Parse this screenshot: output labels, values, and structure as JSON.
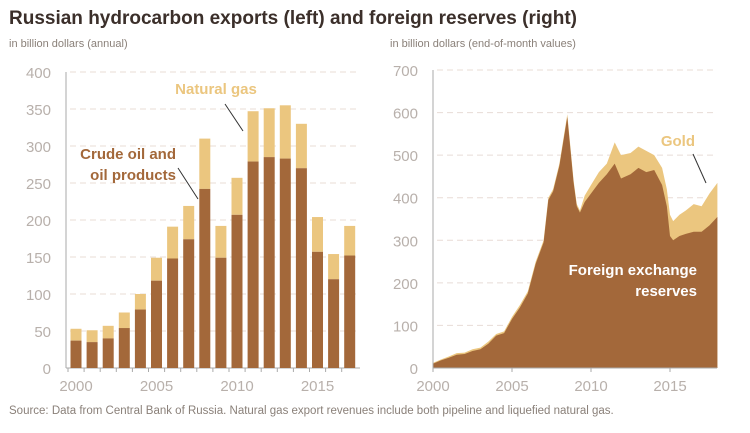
{
  "title": "Russian hydrocarbon exports (left) and foreign reserves (right)",
  "source": "Source: Data from Central Bank of Russia. Natural gas export revenues include both pipeline and liquefied natural gas.",
  "colors": {
    "dark": "#a3683a",
    "light": "#ebc67f",
    "grid": "#e8dcd6",
    "axis": "#aaa",
    "tick": "#b8b0ab"
  },
  "chart_data": [
    {
      "type": "bar",
      "stacked": true,
      "subtitle": "in billion dollars (annual)",
      "ylim": [
        0,
        400
      ],
      "yticks": [
        "0",
        "50",
        "100",
        "150",
        "200",
        "250",
        "300",
        "350",
        "400"
      ],
      "xticks": [
        "2000",
        "2005",
        "2010",
        "2015"
      ],
      "categories": [
        2000,
        2001,
        2002,
        2003,
        2004,
        2005,
        2006,
        2007,
        2008,
        2009,
        2010,
        2011,
        2012,
        2013,
        2014,
        2015,
        2016,
        2017
      ],
      "series": [
        {
          "name": "Crude oil and oil products",
          "values": [
            37,
            35,
            40,
            54,
            79,
            118,
            148,
            174,
            242,
            149,
            207,
            279,
            285,
            283,
            270,
            157,
            120,
            152
          ]
        },
        {
          "name": "Natural gas",
          "values": [
            16,
            16,
            17,
            21,
            21,
            31,
            43,
            45,
            68,
            43,
            50,
            68,
            66,
            72,
            60,
            47,
            34,
            40
          ]
        }
      ],
      "annotations": [
        "Natural gas",
        "Crude oil and",
        "oil products"
      ]
    },
    {
      "type": "area",
      "stacked": true,
      "subtitle": "in billion dollars (end-of-month values)",
      "ylim": [
        0,
        700
      ],
      "xlim": [
        2000,
        2018
      ],
      "yticks": [
        "0",
        "100",
        "200",
        "300",
        "400",
        "500",
        "600",
        "700"
      ],
      "xticks": [
        "2000",
        "2005",
        "2010",
        "2015"
      ],
      "x": [
        2000,
        2000.5,
        2001,
        2001.5,
        2002,
        2002.5,
        2003,
        2003.5,
        2004,
        2004.5,
        2005,
        2005.5,
        2006,
        2006.5,
        2007,
        2007.3,
        2007.6,
        2008,
        2008.5,
        2008.9,
        2009.1,
        2009.3,
        2009.6,
        2010,
        2010.5,
        2011,
        2011.5,
        2011.9,
        2012.5,
        2013,
        2013.5,
        2014,
        2014.5,
        2014.8,
        2015,
        2015.2,
        2015.6,
        2016,
        2016.5,
        2017,
        2017.5,
        2018
      ],
      "series": [
        {
          "name": "Foreign exchange reserves",
          "values": [
            10,
            18,
            24,
            31,
            33,
            40,
            44,
            57,
            76,
            82,
            115,
            142,
            175,
            245,
            295,
            395,
            415,
            475,
            590,
            435,
            380,
            365,
            390,
            410,
            435,
            455,
            480,
            445,
            455,
            470,
            460,
            465,
            430,
            380,
            310,
            300,
            310,
            315,
            320,
            320,
            335,
            355
          ]
        },
        {
          "name": "Gold",
          "values": [
            2,
            2,
            3,
            4,
            3,
            4,
            4,
            5,
            4,
            4,
            5,
            6,
            5,
            5,
            5,
            5,
            5,
            5,
            6,
            5,
            5,
            5,
            15,
            20,
            25,
            25,
            50,
            55,
            50,
            50,
            50,
            35,
            40,
            40,
            50,
            45,
            50,
            55,
            65,
            60,
            75,
            80
          ]
        }
      ],
      "annotations": [
        "Gold",
        "Foreign exchange",
        "reserves"
      ]
    }
  ]
}
